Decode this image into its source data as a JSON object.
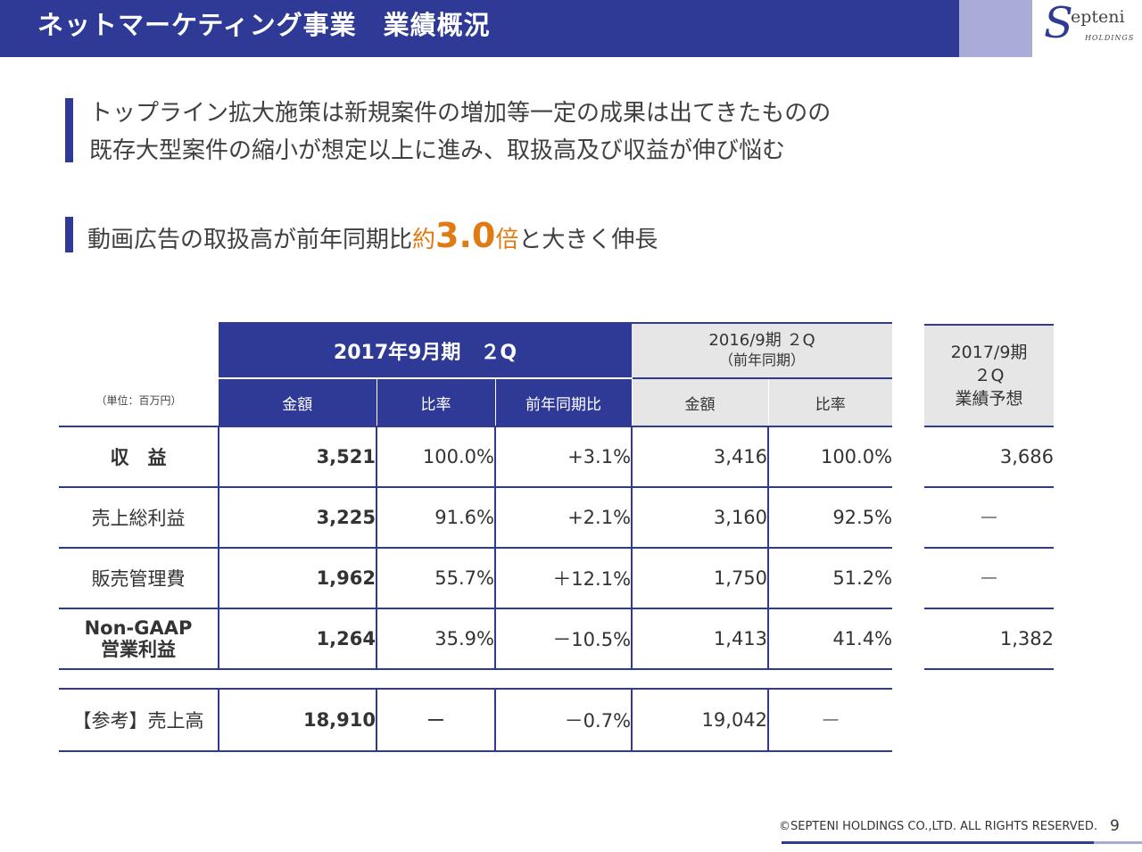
{
  "header": {
    "title": "ネットマーケティング事業　業績概況",
    "logo_letter": "S",
    "logo_word": "epteni",
    "logo_sub": "HOLDINGS"
  },
  "headline1": {
    "line1": "トップライン拡大施策は新規案件の増加等一定の成果は出てきたものの",
    "line2": "既存大型案件の縮小が想定以上に進み、取扱高及び収益が伸び悩む"
  },
  "headline2": {
    "pre": "動画広告の取扱高が前年同期比",
    "accent_small": "約",
    "accent_big": "3.0",
    "accent_small2": "倍",
    "post": "と大きく伸長"
  },
  "table": {
    "unit": "（単位：百万円）",
    "current_period": "2017年9月期　２Q",
    "prev_period_line1": "2016/9期 ２Q",
    "prev_period_line2": "（前年同期）",
    "sub_headers": [
      "金額",
      "比率",
      "前年同期比",
      "金額",
      "比率"
    ],
    "rows": [
      {
        "label": "収　益",
        "amount": "3,521",
        "ratio": "100.0%",
        "yoy": "+3.1%",
        "prev_amount": "3,416",
        "prev_ratio": "100.0%"
      },
      {
        "label": "売上総利益",
        "amount": "3,225",
        "ratio": "91.6%",
        "yoy": "+2.1%",
        "prev_amount": "3,160",
        "prev_ratio": "92.5%"
      },
      {
        "label": "販売管理費",
        "amount": "1,962",
        "ratio": "55.7%",
        "yoy": "＋12.1%",
        "prev_amount": "1,750",
        "prev_ratio": "51.2%"
      },
      {
        "label_line1": "Non-GAAP",
        "label_line2": "営業利益",
        "amount": "1,264",
        "ratio": "35.9%",
        "yoy": "－10.5%",
        "prev_amount": "1,413",
        "prev_ratio": "41.4%"
      }
    ],
    "reference": {
      "label": "【参考】売上高",
      "amount": "18,910",
      "ratio": "ー",
      "yoy": "－0.7%",
      "prev_amount": "19,042",
      "prev_ratio": "ー"
    }
  },
  "forecast": {
    "header_line1": "2017/9期",
    "header_line2": "２Q",
    "header_line3": "業績予想",
    "values": [
      "3,686",
      "ー",
      "ー",
      "1,382"
    ]
  },
  "footer": {
    "copyright": "©SEPTENI HOLDINGS CO.,LTD. ALL RIGHTS RESERVED.",
    "page_number": "9"
  },
  "colors": {
    "brand": "#2e3a96",
    "brand_light": "#a9acd6",
    "accent": "#e07b14",
    "header_gray": "#e6e6e6"
  }
}
